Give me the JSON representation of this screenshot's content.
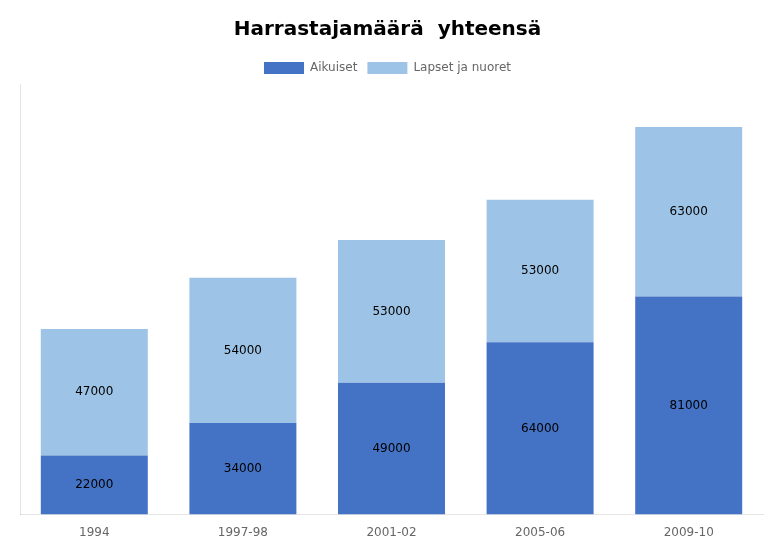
{
  "chart_data": {
    "type": "bar",
    "title": "Harrastajamäärä  yhteensä",
    "categories": [
      "1994",
      "1997-98",
      "2001-02",
      "2005-06",
      "2009-10"
    ],
    "series": [
      {
        "name": "Aikuiset",
        "color": "#4472C4",
        "values": [
          22000,
          34000,
          49000,
          64000,
          81000
        ]
      },
      {
        "name": "Lapset ja nuoret",
        "color": "#9DC3E6",
        "values": [
          47000,
          54000,
          53000,
          53000,
          63000
        ]
      }
    ],
    "stacked": true,
    "ylim": [
      0,
      160000
    ],
    "grid": false,
    "legend": "top",
    "data_labels": true,
    "tick_labels": "x"
  }
}
